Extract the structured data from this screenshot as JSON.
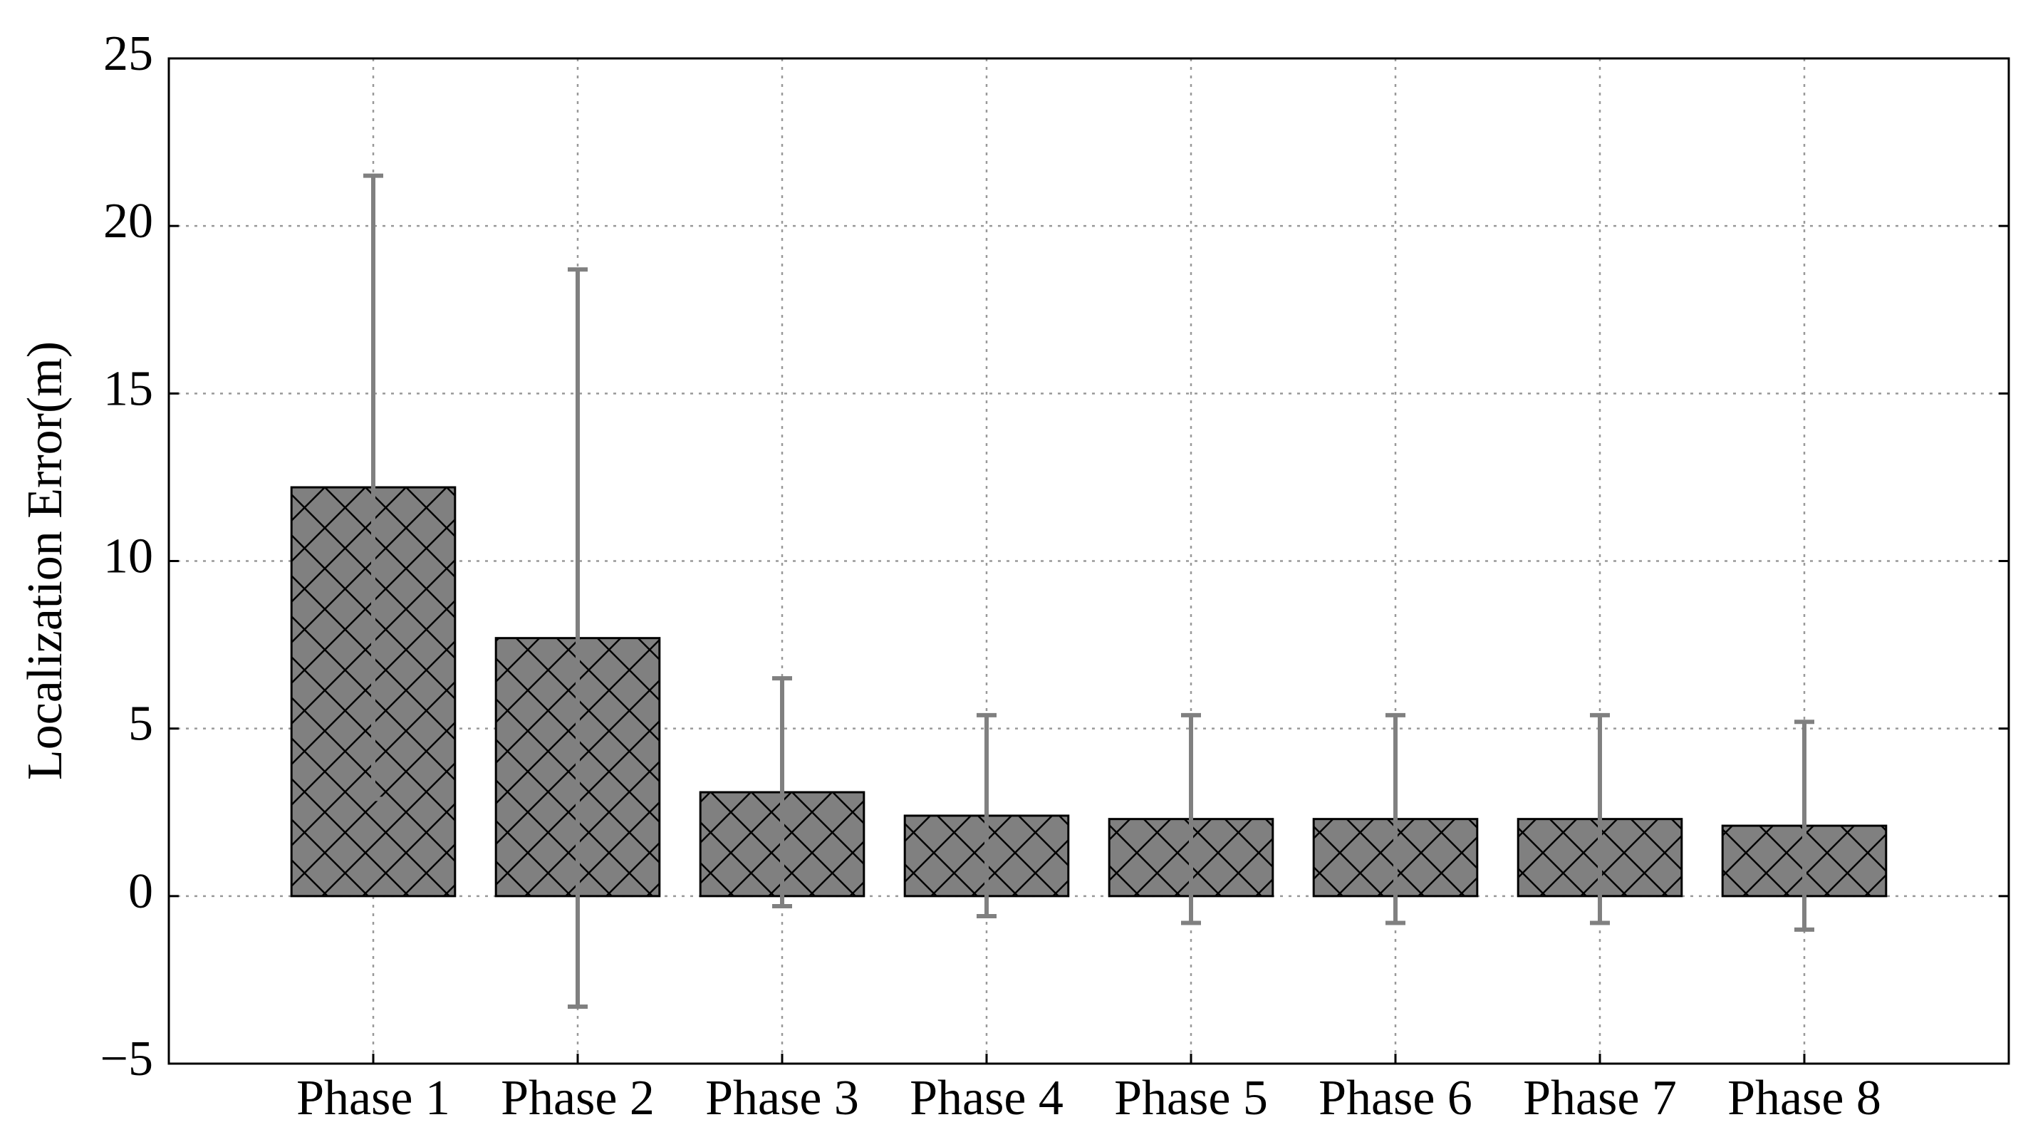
{
  "chart_data": {
    "type": "bar",
    "y_label": "Localization Error(m)",
    "categories": [
      "Phase 1",
      "Phase 2",
      "Phase 3",
      "Phase 4",
      "Phase 5",
      "Phase 6",
      "Phase 7",
      "Phase 8"
    ],
    "values": [
      12.2,
      7.7,
      3.1,
      2.4,
      2.3,
      2.3,
      2.3,
      2.1
    ],
    "errors": [
      9.3,
      11.0,
      3.4,
      3.0,
      3.1,
      3.1,
      3.1,
      3.1
    ],
    "color": "#808080",
    "error_color": "#808080",
    "ylim": [
      -5,
      25
    ],
    "yticks": [
      {
        "value": -5,
        "label": "−5"
      },
      0,
      5,
      10,
      15,
      20,
      25
    ],
    "grid": true
  }
}
